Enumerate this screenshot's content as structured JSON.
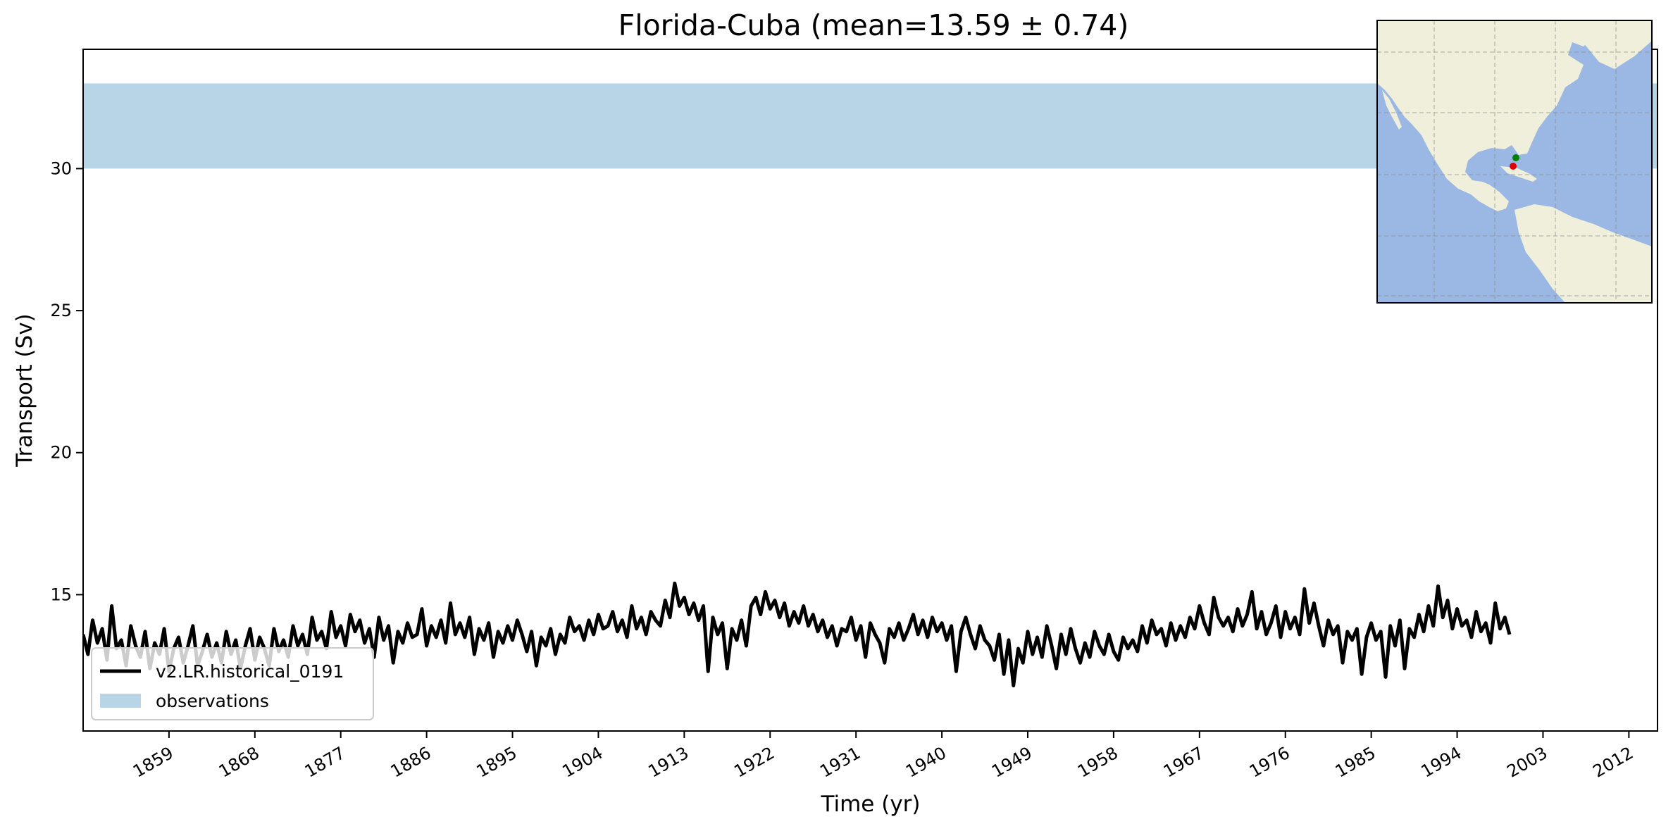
{
  "chart_data": {
    "type": "line",
    "title": "Florida-Cuba (mean=13.59 ± 0.74)",
    "xlabel": "Time (yr)",
    "ylabel": "Transport (Sv)",
    "xlim": [
      1850,
      2015
    ],
    "ylim": [
      10.2,
      34.2
    ],
    "xticks": [
      1859,
      1868,
      1877,
      1886,
      1895,
      1904,
      1913,
      1922,
      1931,
      1940,
      1949,
      1958,
      1967,
      1976,
      1985,
      1994,
      2003,
      2012
    ],
    "yticks": [
      15,
      20,
      25,
      30
    ],
    "grid": false,
    "legend_position": "lower-left",
    "observations": {
      "name": "observations",
      "ymin": 30,
      "ymax": 33,
      "color": "#b8d5e8"
    },
    "series": [
      {
        "name": "v2.LR.historical_0191",
        "color": "#000000",
        "x_start": 1850,
        "x_step": 0.5,
        "values": [
          13.6,
          12.9,
          14.1,
          13.3,
          13.8,
          12.7,
          14.6,
          13.1,
          13.4,
          12.5,
          13.9,
          13.2,
          12.8,
          13.7,
          12.4,
          13.3,
          12.9,
          13.8,
          12.3,
          13.1,
          13.5,
          12.6,
          13.2,
          13.9,
          12.5,
          13.0,
          13.6,
          12.8,
          13.3,
          12.6,
          13.7,
          12.9,
          13.4,
          12.4,
          13.2,
          13.8,
          12.7,
          13.5,
          13.1,
          12.5,
          13.8,
          13.0,
          13.4,
          12.8,
          13.9,
          13.2,
          13.6,
          12.9,
          14.2,
          13.4,
          13.7,
          13.1,
          14.4,
          13.5,
          13.9,
          13.2,
          14.3,
          13.7,
          14.1,
          13.3,
          13.8,
          12.8,
          14.2,
          13.4,
          13.9,
          12.6,
          13.7,
          13.3,
          14.0,
          13.5,
          13.6,
          14.5,
          13.2,
          13.9,
          13.5,
          14.1,
          13.3,
          14.7,
          13.6,
          14.0,
          13.5,
          14.2,
          12.9,
          13.8,
          13.4,
          14.0,
          12.8,
          13.7,
          13.3,
          13.9,
          13.4,
          14.1,
          13.6,
          13.0,
          13.7,
          12.5,
          13.5,
          13.2,
          13.8,
          12.9,
          13.6,
          13.3,
          14.2,
          13.7,
          13.9,
          13.4,
          14.1,
          13.6,
          14.3,
          13.8,
          13.9,
          14.4,
          13.7,
          14.1,
          13.5,
          14.6,
          13.8,
          14.2,
          13.6,
          14.4,
          14.1,
          13.9,
          14.8,
          14.2,
          15.4,
          14.6,
          14.9,
          14.3,
          14.7,
          14.1,
          14.6,
          12.3,
          14.2,
          13.6,
          14.0,
          12.4,
          13.8,
          13.4,
          14.1,
          13.2,
          14.6,
          14.9,
          14.3,
          15.1,
          14.5,
          14.8,
          14.2,
          14.7,
          13.9,
          14.4,
          14.0,
          14.6,
          13.9,
          14.3,
          13.7,
          14.1,
          13.5,
          13.9,
          13.2,
          13.8,
          13.7,
          14.2,
          13.4,
          13.9,
          12.8,
          14.0,
          13.6,
          13.3,
          12.6,
          13.8,
          13.5,
          14.0,
          13.4,
          13.8,
          14.3,
          13.6,
          14.1,
          13.5,
          14.2,
          13.7,
          14.0,
          13.4,
          13.9,
          12.3,
          13.7,
          14.2,
          13.6,
          13.1,
          13.9,
          13.4,
          13.2,
          12.7,
          13.6,
          12.2,
          13.4,
          11.8,
          13.1,
          12.6,
          13.7,
          12.9,
          13.5,
          12.8,
          13.9,
          13.2,
          12.4,
          13.6,
          12.9,
          13.8,
          13.1,
          12.6,
          13.3,
          12.8,
          13.7,
          13.2,
          12.9,
          13.6,
          13.0,
          12.7,
          13.5,
          13.1,
          13.4,
          13.0,
          13.9,
          13.3,
          14.1,
          13.6,
          13.8,
          13.2,
          14.0,
          13.4,
          13.9,
          13.5,
          14.2,
          13.8,
          14.6,
          14.0,
          13.6,
          14.9,
          14.2,
          13.9,
          14.2,
          13.7,
          14.5,
          13.9,
          14.3,
          15.1,
          13.8,
          14.4,
          13.6,
          14.0,
          14.6,
          13.5,
          14.4,
          13.8,
          14.2,
          13.6,
          15.2,
          14.0,
          14.7,
          13.9,
          13.2,
          14.1,
          13.6,
          13.9,
          12.6,
          13.7,
          13.4,
          13.8,
          12.2,
          13.5,
          14.0,
          13.4,
          13.7,
          12.1,
          13.9,
          13.2,
          14.1,
          12.4,
          13.8,
          13.5,
          14.3,
          13.7,
          14.6,
          13.9,
          15.3,
          14.2,
          14.8,
          13.8,
          14.5,
          13.9,
          14.1,
          13.5,
          14.4,
          13.7,
          14.0,
          13.3,
          14.7,
          13.8,
          14.2,
          13.6
        ]
      }
    ]
  }
}
